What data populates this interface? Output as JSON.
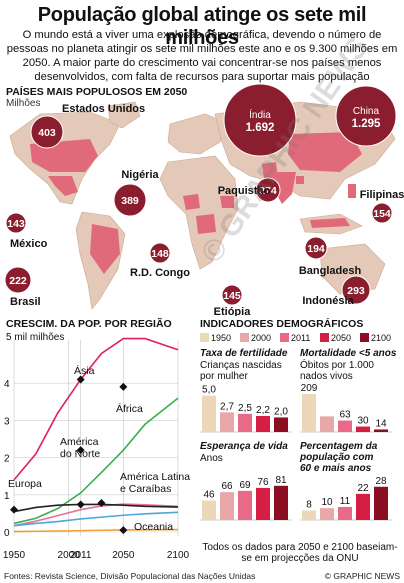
{
  "title": "População global atinge os sete mil milhões",
  "intro": "O mundo está a viver uma explosão demográfica, devendo o número de pessoas no planeta atingir os sete mil milhões este ano e os 9.300 milhões em 2050. A maior parte do crescimento vai concentrar-se nos países menos desenvolvidos, com falta de recursos para suportar mais população",
  "map": {
    "title": "PAÍSES MAIS POPULOSOS EM 2050",
    "subtitle": "Milhões",
    "countries": [
      {
        "name": "Índia",
        "value": "1.692"
      },
      {
        "name": "China",
        "value": "1.295"
      },
      {
        "name": "Estados Unidos",
        "value": "403"
      },
      {
        "name": "Nigéria",
        "value": "389"
      },
      {
        "name": "Paquistão",
        "value": "274"
      },
      {
        "name": "Filipinas",
        "value": "154"
      },
      {
        "name": "México",
        "value": "143"
      },
      {
        "name": "Brasil",
        "value": "222"
      },
      {
        "name": "R.D. Congo",
        "value": "148"
      },
      {
        "name": "Bangladesh",
        "value": "194"
      },
      {
        "name": "Etiópia",
        "value": "145"
      },
      {
        "name": "Indonésia",
        "value": "293"
      }
    ]
  },
  "colors": {
    "dark_red": "#8b1e2e",
    "map_pink": "#e06a7a",
    "land": "#e4c9b8",
    "ocean": "#ffffff",
    "line_red": "#e0205a",
    "line_green": "#38b04a",
    "line_pink": "#e86fa0",
    "line_blue": "#4aa8d8",
    "line_orange": "#f0a030"
  },
  "chart_data": [
    {
      "type": "line",
      "title": "CRESCIM. DA POP. POR REGIÃO",
      "ylabel": "5 mil milhões",
      "x_ticks": [
        "1950",
        "2000",
        "2011",
        "2050",
        "2100"
      ],
      "y_ticks": [
        "0",
        "1",
        "2",
        "3",
        "4"
      ],
      "ylim": [
        0,
        5
      ],
      "xlim": [
        1950,
        2100
      ],
      "series": [
        {
          "name": "Ásia",
          "x": [
            1950,
            1970,
            1990,
            2011,
            2030,
            2050,
            2070,
            2100
          ],
          "y": [
            1.4,
            2.1,
            3.2,
            4.1,
            4.8,
            5.2,
            5.2,
            4.9
          ]
        },
        {
          "name": "África",
          "x": [
            1950,
            1970,
            1990,
            2011,
            2030,
            2050,
            2070,
            2100
          ],
          "y": [
            0.23,
            0.37,
            0.63,
            1.05,
            1.6,
            2.2,
            2.9,
            3.6
          ]
        },
        {
          "name": "América Latina e Caraíbas",
          "x": [
            1950,
            1970,
            1990,
            2011,
            2030,
            2050,
            2070,
            2100
          ],
          "y": [
            0.17,
            0.29,
            0.44,
            0.6,
            0.7,
            0.75,
            0.73,
            0.69
          ]
        },
        {
          "name": "Europa",
          "x": [
            1950,
            1970,
            1990,
            2011,
            2030,
            2050,
            2070,
            2100
          ],
          "y": [
            0.55,
            0.66,
            0.72,
            0.74,
            0.74,
            0.72,
            0.69,
            0.67
          ]
        },
        {
          "name": "América do Norte",
          "x": [
            1950,
            1970,
            1990,
            2011,
            2030,
            2050,
            2070,
            2100
          ],
          "y": [
            0.17,
            0.23,
            0.28,
            0.35,
            0.4,
            0.45,
            0.49,
            0.53
          ]
        },
        {
          "name": "Oceania",
          "x": [
            1950,
            1970,
            1990,
            2011,
            2030,
            2050,
            2070,
            2100
          ],
          "y": [
            0.013,
            0.02,
            0.027,
            0.037,
            0.047,
            0.055,
            0.06,
            0.066
          ]
        }
      ]
    },
    {
      "type": "bar",
      "title": "INDICADORES DEMOGRÁFICOS",
      "legend": [
        "1950",
        "2000",
        "2011",
        "2050",
        "2100"
      ],
      "panels": [
        {
          "name": "Taxa de fertilidade",
          "label": "Crianças nascidas por mulher",
          "values": [
            5.0,
            2.7,
            2.5,
            2.2,
            2.0
          ],
          "labels": [
            "5,0",
            "2,7",
            "2,5",
            "2,2",
            "2,0"
          ]
        },
        {
          "name": "Mortalidade <5 anos",
          "label": "Óbitos por 1.000 nados vivos",
          "values": [
            209,
            86,
            63,
            30,
            14
          ],
          "labels": [
            "209",
            "",
            "63",
            "30",
            "14"
          ]
        },
        {
          "name": "Esperança de vida",
          "label": "Anos",
          "values": [
            46,
            66,
            69,
            76,
            81
          ],
          "labels": [
            "46",
            "66",
            "69",
            "76",
            "81"
          ]
        },
        {
          "name": "Percentagem da população com 60 e mais anos",
          "label": "",
          "values": [
            8,
            10,
            11,
            22,
            28
          ],
          "labels": [
            "8",
            "10",
            "11",
            "22",
            "28"
          ]
        }
      ]
    }
  ],
  "line_chart_labels": {
    "asia": "Ásia",
    "africa": "África",
    "north_america_1": "América",
    "north_america_2": "do Norte",
    "latam_1": "América Latina",
    "latam_2": "e Caraíbas",
    "europe": "Europa",
    "oceania": "Oceania"
  },
  "bar_palette": [
    "#ecd8b8",
    "#e8a8a8",
    "#e86a88",
    "#d41e44",
    "#8b0e22"
  ],
  "note": "Todos os dados para 2050 e 2100 baseiam-se em projecções da ONU",
  "footer": "Fontes: Revista Science, Divisão Populacional das Nações Unidas",
  "credit": "© GRAPHIC NEWS",
  "watermark": "© GRAPHIC NEWS"
}
